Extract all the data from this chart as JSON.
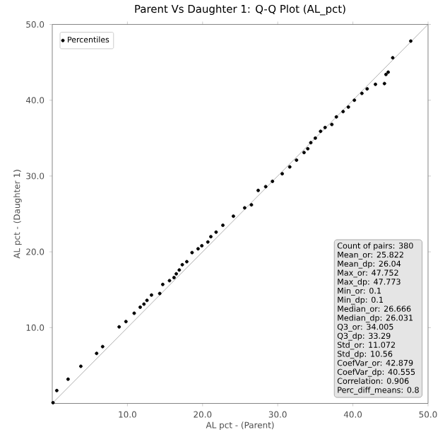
{
  "chart_data": {
    "type": "scatter",
    "title": "Parent Vs Daughter 1: Q-Q Plot (AL_pct)",
    "xlabel": "AL pct - (Parent)",
    "ylabel": "AL pct - (Daughter 1)",
    "xlim": [
      0,
      50
    ],
    "ylim": [
      0,
      50
    ],
    "xticks": [
      {
        "value": 10,
        "label": "10.0"
      },
      {
        "value": 20,
        "label": "20.0"
      },
      {
        "value": 30,
        "label": "30.0"
      },
      {
        "value": 40,
        "label": "40.0"
      },
      {
        "value": 50,
        "label": "50.0"
      }
    ],
    "yticks": [
      {
        "value": 10,
        "label": "10.0"
      },
      {
        "value": 20,
        "label": "20.0"
      },
      {
        "value": 30,
        "label": "30.0"
      },
      {
        "value": 40,
        "label": "40.0"
      },
      {
        "value": 50,
        "label": "50.0"
      }
    ],
    "legend": "top left",
    "grid": false,
    "series": [
      {
        "name": "Percentiles",
        "color": "#000000",
        "marker": "circle",
        "x": [
          0.1,
          0.6,
          2.1,
          3.8,
          5.9,
          6.7,
          8.9,
          9.8,
          10.9,
          11.7,
          12.2,
          12.6,
          13.2,
          14.3,
          14.7,
          15.6,
          16.2,
          16.5,
          16.9,
          17.3,
          17.9,
          18.6,
          19.4,
          19.9,
          20.7,
          21.1,
          21.8,
          22.7,
          24.1,
          25.6,
          26.5,
          27.4,
          28.4,
          29.3,
          30.6,
          31.6,
          32.5,
          33.5,
          34.0,
          34.4,
          35.0,
          35.7,
          36.3,
          37.2,
          37.8,
          38.7,
          39.4,
          40.2,
          41.2,
          41.9,
          43.0,
          44.2,
          44.4,
          44.7,
          45.3,
          47.7
        ],
        "values": [
          0.1,
          1.7,
          3.2,
          4.9,
          6.6,
          7.5,
          10.1,
          10.8,
          11.9,
          12.7,
          13.1,
          13.6,
          14.3,
          14.5,
          15.7,
          16.2,
          16.6,
          17.1,
          17.6,
          18.3,
          18.7,
          19.9,
          20.4,
          20.8,
          21.3,
          22.0,
          22.6,
          23.5,
          24.7,
          25.8,
          26.2,
          28.1,
          28.6,
          29.3,
          30.3,
          31.2,
          32.1,
          33.1,
          33.6,
          34.4,
          35.0,
          35.9,
          36.4,
          36.8,
          37.8,
          38.5,
          39.1,
          40.0,
          40.9,
          41.5,
          42.1,
          42.2,
          43.4,
          43.7,
          45.6,
          47.8
        ]
      },
      {
        "type": "line",
        "color": "#b0b0b0",
        "marker": "none",
        "x": [
          0,
          50
        ],
        "values": [
          0,
          50
        ]
      }
    ],
    "annotations": [
      "Count of pairs: 380",
      "Mean_or: 25.822",
      "Mean_dp: 26.04",
      "Max_or: 47.752",
      "Max_dp: 47.773",
      "Min_or: 0.1",
      "Min_dp: 0.1",
      "Median_or: 26.666",
      "Median_dp: 26.031",
      "Q3_or: 34.005",
      "Q3_dp: 33.29",
      "Std_or: 11.072",
      "Std_dp: 10.56",
      "CoefVar_or: 42.879",
      "CoefVar_dp: 40.555",
      "Correlation: 0.906",
      "Perc_diff_means: 0.8"
    ]
  }
}
